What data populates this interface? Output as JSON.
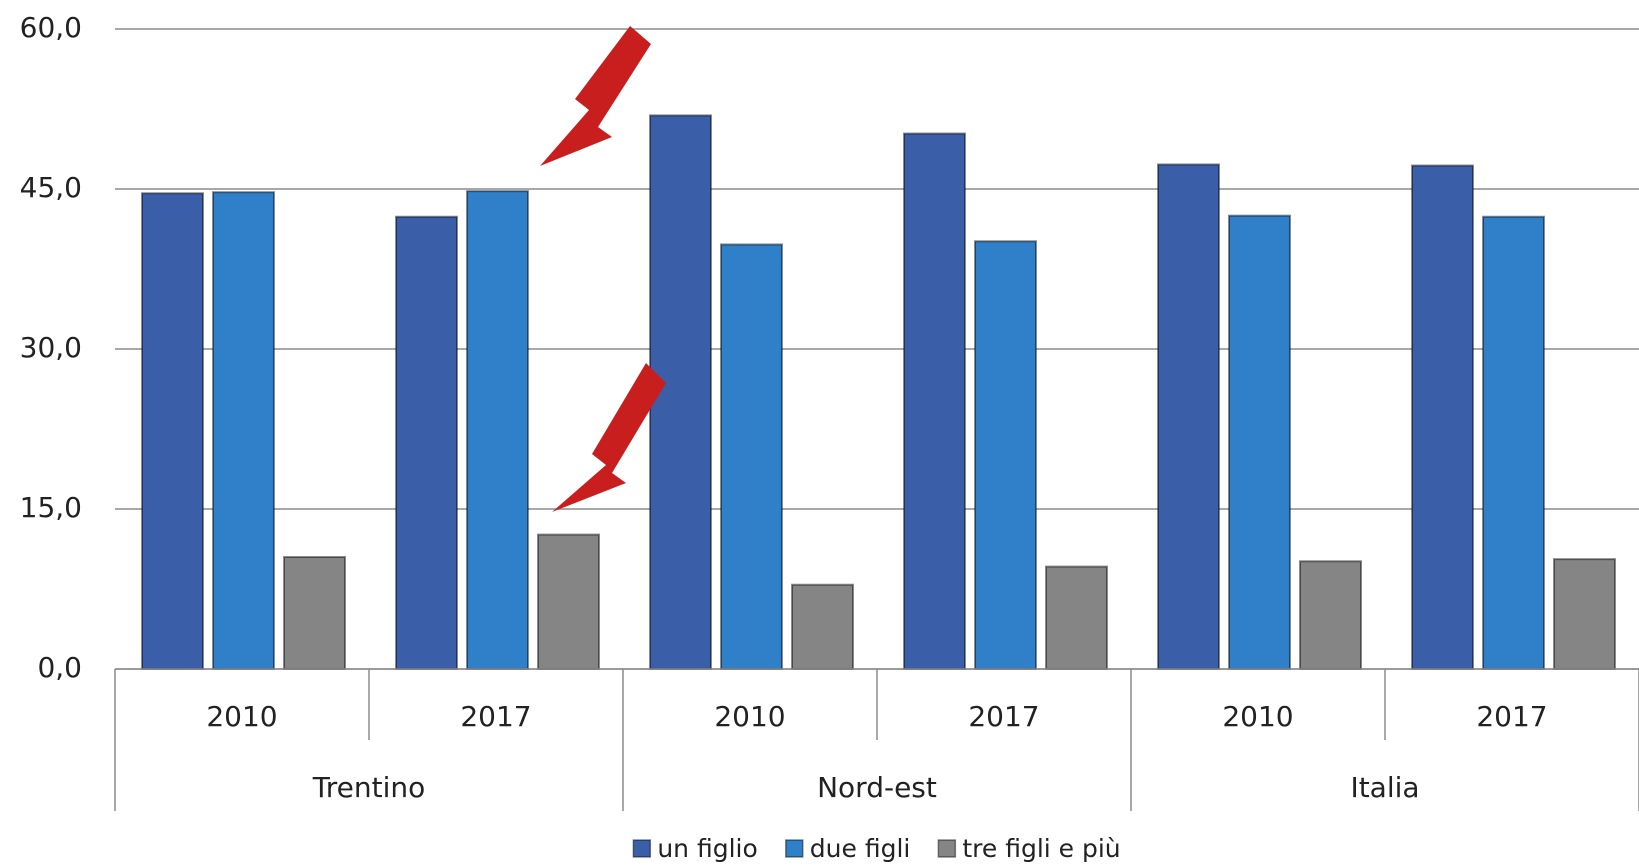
{
  "chart_data": {
    "type": "bar",
    "categories": [
      "2010",
      "2017",
      "2010",
      "2017",
      "2010",
      "2017"
    ],
    "groups": [
      "Trentino",
      "Nord-est",
      "Italia"
    ],
    "series": [
      {
        "name": "un figlio",
        "color": "#3a5ea8",
        "values": [
          44.6,
          42.4,
          51.9,
          50.2,
          47.3,
          47.2
        ]
      },
      {
        "name": "due figli",
        "color": "#2f80c8",
        "values": [
          44.7,
          44.8,
          39.8,
          40.1,
          42.5,
          42.4
        ]
      },
      {
        "name": "tre figli e più",
        "color": "#858585",
        "values": [
          10.5,
          12.6,
          7.9,
          9.6,
          10.1,
          10.3
        ]
      }
    ],
    "ylim": [
      0,
      60
    ],
    "yticks": [
      {
        "value": 0,
        "label": "0,0"
      },
      {
        "value": 15,
        "label": "15,0"
      },
      {
        "value": 30,
        "label": "30,0"
      },
      {
        "value": 45,
        "label": "45,0"
      },
      {
        "value": 60,
        "label": "60,0"
      }
    ],
    "grid": true
  }
}
